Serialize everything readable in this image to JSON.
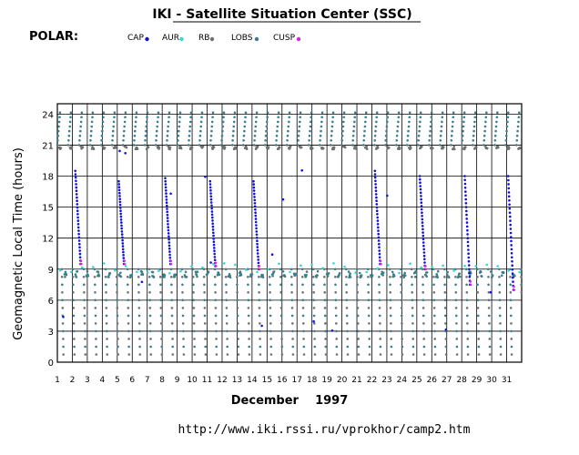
{
  "title": "IKI - Satellite Situation Center (SSC)",
  "satellite_label": "POLAR:",
  "legend": [
    {
      "name": "CAP",
      "color": "#1010e0"
    },
    {
      "name": "AUR",
      "color": "#30d8d8"
    },
    {
      "name": "RB",
      "color": "#707070"
    },
    {
      "name": "LOBS",
      "color": "#3a7f8a"
    },
    {
      "name": "CUSP",
      "color": "#e020e0"
    }
  ],
  "footer": {
    "month_year": "December    1997",
    "url": "http://www.iki.rssi.ru/vprokhor/camp2.htm"
  },
  "chart_data": {
    "type": "scatter",
    "title": "IKI - Satellite Situation Center (SSC)",
    "xlabel": "December    1997",
    "ylabel": "Geomagnetic Local Time (hours)",
    "x_ticks": [
      "1",
      "2",
      "3",
      "4",
      "5",
      "6",
      "7",
      "8",
      "9",
      "10",
      "11",
      "12",
      "13",
      "14",
      "15",
      "16",
      "17",
      "18",
      "19",
      "20",
      "21",
      "22",
      "23",
      "24",
      "25",
      "26",
      "27",
      "28",
      "29",
      "30",
      "31"
    ],
    "y_ticks": [
      "0",
      "3",
      "6",
      "9",
      "12",
      "15",
      "18",
      "21",
      "24"
    ],
    "xlim": [
      1,
      32
    ],
    "ylim": [
      0,
      25
    ],
    "grid": true,
    "legend_position": "top",
    "series_names": [
      "CAP",
      "AUR",
      "RB",
      "LOBS",
      "CUSP"
    ],
    "pattern": "orbit traces of ~1.5 day period: each pass sweeps GMLT 21-24h, then through CAP (blue) from ~18h down to ~9h, CUSP near 9-10h, then RB/LOBS from ~9h down to 0h",
    "cap_descents": [
      {
        "day": 2.2,
        "from": 18.5,
        "to": 9.5
      },
      {
        "day": 5.1,
        "from": 17.5,
        "to": 9.5
      },
      {
        "day": 8.2,
        "from": 17.8,
        "to": 9.5
      },
      {
        "day": 11.2,
        "from": 17.5,
        "to": 9.3
      },
      {
        "day": 14.1,
        "from": 17.5,
        "to": 9.0
      },
      {
        "day": 22.2,
        "from": 18.5,
        "to": 9.5
      },
      {
        "day": 25.2,
        "from": 18.0,
        "to": 9.0
      },
      {
        "day": 28.2,
        "from": 18.0,
        "to": 7.5
      },
      {
        "day": 31.1,
        "from": 18.0,
        "to": 7.0
      }
    ]
  }
}
